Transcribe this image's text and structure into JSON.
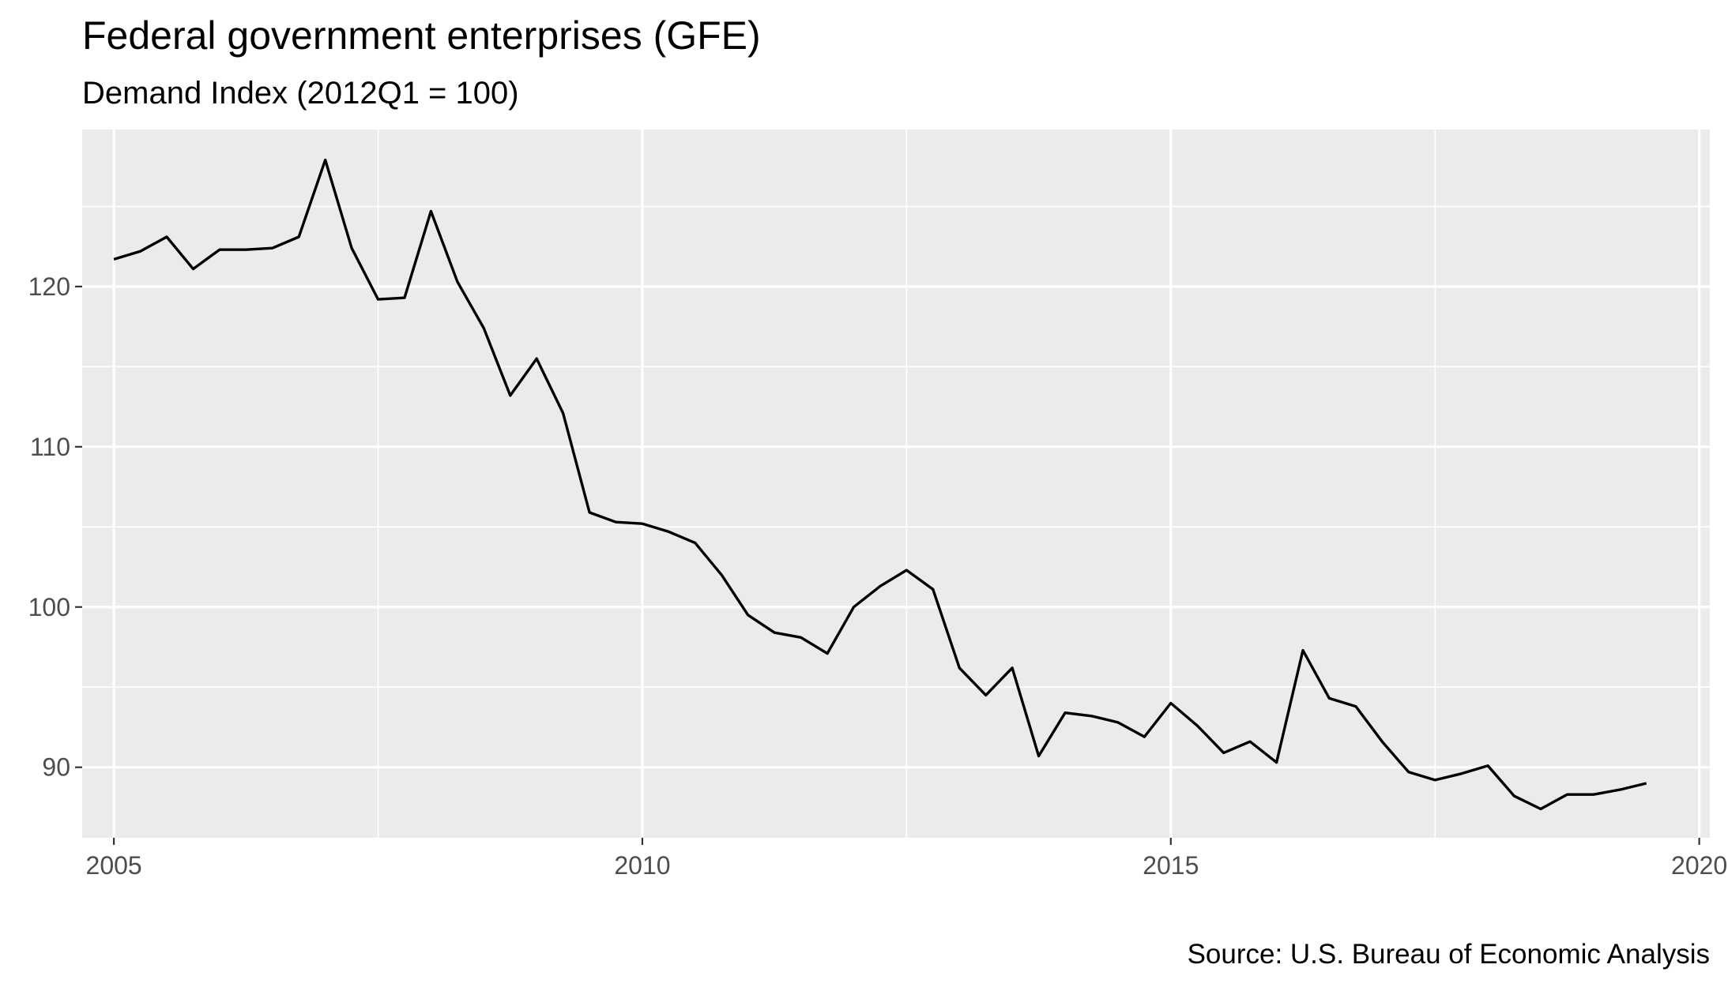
{
  "chart_data": {
    "type": "line",
    "title": "Federal government enterprises (GFE)",
    "subtitle": "Demand Index (2012Q1 = 100)",
    "caption": "Source: U.S. Bureau of Economic Analysis",
    "xlabel": "",
    "ylabel": "",
    "xlim": [
      2004.7,
      2020.1
    ],
    "ylim": [
      85.6,
      129.8
    ],
    "x_ticks": [
      2005,
      2010,
      2015,
      2020
    ],
    "y_ticks": [
      90,
      100,
      110,
      120
    ],
    "x_tick_labels": [
      "2005",
      "2010",
      "2015",
      "2020"
    ],
    "y_tick_labels": [
      "90",
      "100",
      "110",
      "120"
    ],
    "grid": true,
    "legend": "none",
    "series": [
      {
        "color": "#000000",
        "x": [
          2005.0,
          2005.25,
          2005.5,
          2005.75,
          2006.0,
          2006.25,
          2006.5,
          2006.75,
          2007.0,
          2007.25,
          2007.5,
          2007.75,
          2008.0,
          2008.25,
          2008.5,
          2008.75,
          2009.0,
          2009.25,
          2009.5,
          2009.75,
          2010.0,
          2010.25,
          2010.5,
          2010.75,
          2011.0,
          2011.25,
          2011.5,
          2011.75,
          2012.0,
          2012.25,
          2012.5,
          2012.75,
          2013.0,
          2013.25,
          2013.5,
          2013.75,
          2014.0,
          2014.25,
          2014.5,
          2014.75,
          2015.0,
          2015.25,
          2015.5,
          2015.75,
          2016.0,
          2016.25,
          2016.5,
          2016.75,
          2017.0,
          2017.25,
          2017.5,
          2017.75,
          2018.0,
          2018.25,
          2018.5,
          2018.75,
          2019.0,
          2019.25,
          2019.5
        ],
        "y": [
          121.7,
          122.2,
          123.1,
          121.1,
          122.3,
          122.3,
          122.4,
          123.1,
          127.9,
          122.4,
          119.2,
          119.3,
          124.7,
          120.3,
          117.4,
          113.2,
          115.5,
          112.1,
          105.9,
          105.3,
          105.2,
          104.7,
          104.0,
          102.0,
          99.5,
          98.4,
          98.1,
          97.1,
          100.0,
          101.3,
          102.3,
          101.1,
          96.2,
          94.5,
          96.2,
          90.7,
          93.4,
          93.2,
          92.8,
          91.9,
          94.0,
          92.6,
          90.9,
          91.6,
          90.3,
          97.3,
          94.3,
          93.8,
          91.6,
          89.7,
          89.2,
          89.6,
          90.1,
          88.2,
          87.4,
          88.3,
          88.3,
          88.6,
          89.0
        ]
      }
    ]
  }
}
